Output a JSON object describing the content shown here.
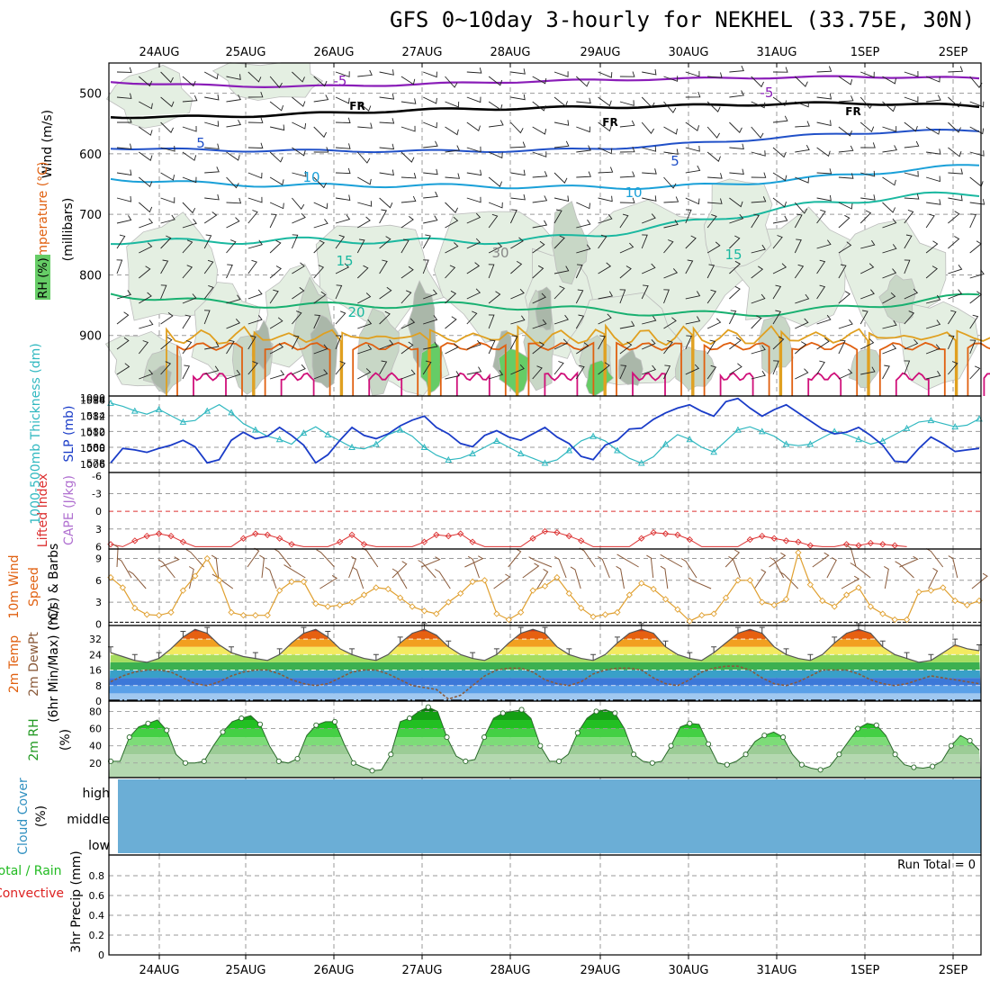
{
  "title": "GFS 0~10day 3-hourly for NEKHEL (33.75E, 30N)",
  "dates": [
    "24AUG",
    "25AUG",
    "26AUG",
    "27AUG",
    "28AUG",
    "29AUG",
    "30AUG",
    "31AUG",
    "1SEP",
    "2SEP"
  ],
  "colors": {
    "frame": "#000000",
    "grid": "#9a9a9a",
    "rh_fill_light": "#e4efe2",
    "rh_fill_mid": "#c8d7c6",
    "rh_fill_dark": "#aab7a9",
    "rh_fill_green": "#66cc66",
    "temp_purple": "#8a1db8",
    "temp_blue": "#2050c8",
    "temp_cyan": "#1aa0d8",
    "temp_teal": "#1ab8a0",
    "temp_green": "#18b070",
    "temp_orange": "#e0a020",
    "temp_darkorange": "#e06010",
    "temp_magenta": "#d0107a",
    "slp": "#1a3cc8",
    "thickness": "#30b8c0",
    "lifted": "#dc3030",
    "wind_speed": "#e0a030",
    "dewpoint": "#8a5a3a",
    "rh2m": "#229922",
    "cloud": "#6baed6"
  },
  "panels": {
    "upper": {
      "ylabel_wind": "Wind (m/s)",
      "ylabel_temp": "Temperature (°C)",
      "ylabel_rh": "RH (%)",
      "ylabel_units": "(millibars)",
      "ticks": [
        "500",
        "600",
        "700",
        "800",
        "900",
        "1000"
      ],
      "contour_labels": [
        "-5",
        "-5",
        "FR",
        "FR",
        "FR",
        "5",
        "5",
        "10",
        "10",
        "15",
        "15",
        "20",
        "30"
      ]
    },
    "slp": {
      "ylabel_thick": "1000-500mb Thickness (dm)",
      "ylabel_slp": "SLP (mb)",
      "left_ticks": [
        "586",
        "584",
        "582",
        "580",
        "578"
      ],
      "right_ticks": [
        "1014",
        "1012",
        "1010",
        "1008",
        "1006"
      ],
      "top_label": "1000"
    },
    "cape": {
      "ylabel_li": "Lifted Index",
      "ylabel_cape": "CAPE (J/kg)",
      "ticks": [
        "-6",
        "-3",
        "0",
        "3",
        "6"
      ]
    },
    "wind10": {
      "ylabel_1": "10m Wind",
      "ylabel_2": "Speed",
      "ylabel_3": "(m/s) & Barbs",
      "ticks": [
        "9",
        "6",
        "3",
        "0"
      ]
    },
    "temp2m": {
      "ylabel_1": "2m Temp",
      "ylabel_2": "2m DewPt",
      "ylabel_3": "(6hr Min/Max) (°C)",
      "ticks": [
        "32",
        "24",
        "16",
        "8",
        "0"
      ]
    },
    "rh2m": {
      "ylabel_1": "2m RH",
      "ylabel_2": "(%)",
      "ticks": [
        "80",
        "60",
        "40",
        "20"
      ]
    },
    "cloud": {
      "ylabel_1": "Cloud Cover",
      "ylabel_2": "(%)",
      "levels": [
        "high",
        "middle",
        "low"
      ]
    },
    "precip": {
      "ylabel_1": "Total / Rain",
      "ylabel_2": "Convective",
      "ylabel_3": "3hr Precip (mm)",
      "ticks": [
        "0.8",
        "0.6",
        "0.4",
        "0.2",
        "0"
      ],
      "run_total": "Run Total = 0"
    }
  },
  "chart_data": [
    {
      "type": "line",
      "name": "slp_thickness",
      "x_unit": "3-hourly steps from 23AUG 12Z",
      "series": [
        {
          "name": "SLP (mb)",
          "values": [
            1006.2,
            1008.0,
            1007.8,
            1007.5,
            1008.0,
            1008.4,
            1009.0,
            1008.2,
            1006.2,
            1006.6,
            1009.0,
            1010.0,
            1009.2,
            1009.5,
            1010.6,
            1009.6,
            1008.4,
            1006.2,
            1007.2,
            1009.0,
            1010.6,
            1009.6,
            1009.2,
            1009.8,
            1010.8,
            1011.5,
            1012.0,
            1010.6,
            1009.8,
            1008.6,
            1008.2,
            1009.6,
            1010.2,
            1009.4,
            1009.0,
            1009.8,
            1010.6,
            1009.4,
            1008.6,
            1007.0,
            1006.6,
            1008.4,
            1009.0,
            1010.4,
            1010.5,
            1011.6,
            1012.4,
            1013.0,
            1013.4,
            1012.6,
            1012.0,
            1013.8,
            1014.2,
            1013.0,
            1012.0,
            1012.8,
            1013.4,
            1012.4,
            1011.4,
            1010.4,
            1009.8,
            1010.0,
            1010.6,
            1009.6,
            1008.4,
            1006.4,
            1006.3,
            1008.0,
            1009.4,
            1008.6,
            1007.6,
            1007.8,
            1008.0
          ]
        },
        {
          "name": "1000-500mb Thickness (dm)",
          "values": [
            585.6,
            585.2,
            584.6,
            584.2,
            584.8,
            584.0,
            583.2,
            583.4,
            584.6,
            585.4,
            584.4,
            583.0,
            582.2,
            581.4,
            581.0,
            580.4,
            581.8,
            582.6,
            581.6,
            580.8,
            580.0,
            579.8,
            580.4,
            581.6,
            582.2,
            581.4,
            580.0,
            579.0,
            578.4,
            578.6,
            579.2,
            580.0,
            580.8,
            580.0,
            579.2,
            578.6,
            578.0,
            578.4,
            579.6,
            580.8,
            581.4,
            580.8,
            579.6,
            578.6,
            578.0,
            578.8,
            580.4,
            581.6,
            581.0,
            580.0,
            579.4,
            580.8,
            582.2,
            582.6,
            582.0,
            581.4,
            580.4,
            580.2,
            580.4,
            581.2,
            582.0,
            581.6,
            581.0,
            580.4,
            580.8,
            581.6,
            582.4,
            583.2,
            583.4,
            583.0,
            582.6,
            582.8,
            583.6
          ]
        }
      ]
    },
    {
      "type": "line",
      "name": "lifted_index",
      "x_unit": "3-hourly steps from 23AUG 12Z",
      "series": [
        {
          "name": "Lifted Index",
          "values": [
            5.6,
            6.0,
            5.0,
            4.2,
            3.8,
            4.2,
            5.2,
            6.0,
            6.0,
            6.0,
            6.0,
            4.6,
            3.8,
            4.0,
            4.6,
            5.6,
            6.0,
            6.0,
            6.0,
            5.2,
            4.0,
            5.6,
            6.0,
            6.0,
            6.0,
            6.0,
            5.2,
            4.0,
            4.2,
            3.8,
            5.2,
            6.0,
            6.0,
            6.0,
            6.0,
            4.6,
            3.4,
            3.6,
            4.2,
            5.0,
            6.0,
            6.0,
            6.0,
            6.0,
            4.6,
            3.6,
            3.8,
            4.0,
            4.8,
            6.0,
            6.0,
            6.0,
            6.0,
            4.8,
            4.2,
            4.6,
            5.0,
            5.2,
            5.8,
            6.0,
            6.0,
            5.6,
            5.8,
            5.4,
            5.6,
            5.8,
            6.0
          ]
        }
      ]
    },
    {
      "type": "line",
      "name": "wind_speed_10m",
      "x_unit": "3-hourly steps from 23AUG 12Z",
      "series": [
        {
          "name": "10m Wind Speed (m/s)",
          "values": [
            6.4,
            5.0,
            2.2,
            1.3,
            1.2,
            1.6,
            4.6,
            6.6,
            9.0,
            6.0,
            1.6,
            1.2,
            1.2,
            1.2,
            4.6,
            5.8,
            5.8,
            2.8,
            2.4,
            2.6,
            3.0,
            4.0,
            5.0,
            4.8,
            3.6,
            2.4,
            1.8,
            1.4,
            3.0,
            4.2,
            5.8,
            6.0,
            1.4,
            0.6,
            1.6,
            4.6,
            5.2,
            6.4,
            4.2,
            2.2,
            1.0,
            1.3,
            1.6,
            4.0,
            5.6,
            4.8,
            3.4,
            2.0,
            0.4,
            1.2,
            1.4,
            3.6,
            6.0,
            6.0,
            3.0,
            2.6,
            3.4,
            9.8,
            5.4,
            3.2,
            2.4,
            4.0,
            5.0,
            2.4,
            1.4,
            0.6,
            0.6,
            4.4,
            4.6,
            5.0,
            3.2,
            2.6,
            3.2
          ]
        }
      ]
    },
    {
      "type": "area",
      "name": "temp_dewpoint_2m",
      "x_unit": "3-hourly steps from 23AUG 12Z",
      "series": [
        {
          "name": "2m Temp (°C)",
          "values": [
            25,
            23,
            21,
            20,
            22,
            27,
            33,
            37,
            35,
            29,
            25,
            23,
            22,
            21,
            24,
            30,
            35,
            37,
            33,
            27,
            24,
            22,
            21,
            24,
            30,
            35,
            37,
            34,
            28,
            24,
            22,
            21,
            24,
            30,
            35,
            37,
            35,
            28,
            24,
            22,
            21,
            24,
            30,
            35,
            37,
            35,
            28,
            24,
            22,
            21,
            25,
            30,
            35,
            37,
            35,
            28,
            24,
            22,
            21,
            24,
            30,
            35,
            37,
            35,
            28,
            24,
            22,
            20,
            21,
            25,
            29,
            27,
            26
          ]
        },
        {
          "name": "2m DewPt (°C)",
          "values": [
            10,
            13,
            15,
            16,
            16,
            15,
            12,
            9,
            8,
            10,
            13,
            15,
            16,
            16,
            14,
            11,
            9,
            8,
            9,
            12,
            15,
            16,
            16,
            14,
            11,
            8,
            7,
            6,
            1,
            3,
            8,
            13,
            16,
            17,
            17,
            15,
            11,
            9,
            8,
            10,
            14,
            16,
            17,
            17,
            16,
            12,
            9,
            8,
            11,
            15,
            17,
            18,
            18,
            16,
            12,
            9,
            8,
            10,
            13,
            16,
            16,
            16,
            14,
            11,
            9,
            8,
            9,
            11,
            13,
            12,
            11,
            10,
            9
          ]
        }
      ]
    },
    {
      "type": "area",
      "name": "rh_2m",
      "x_unit": "3-hourly steps from 23AUG 12Z",
      "series": [
        {
          "name": "2m RH (%)",
          "values": [
            22,
            22,
            50,
            62,
            66,
            70,
            58,
            30,
            20,
            20,
            22,
            40,
            56,
            68,
            72,
            75,
            65,
            40,
            22,
            20,
            25,
            52,
            64,
            68,
            68,
            42,
            20,
            15,
            11,
            12,
            30,
            68,
            72,
            80,
            85,
            80,
            50,
            28,
            22,
            24,
            50,
            72,
            78,
            80,
            82,
            72,
            40,
            22,
            22,
            30,
            55,
            72,
            80,
            82,
            78,
            60,
            30,
            22,
            20,
            22,
            40,
            62,
            66,
            65,
            42,
            20,
            18,
            22,
            30,
            45,
            52,
            56,
            50,
            30,
            18,
            14,
            12,
            16,
            30,
            45,
            60,
            66,
            64,
            52,
            30,
            18,
            15,
            14,
            16,
            22,
            40,
            52,
            46,
            35
          ]
        }
      ]
    },
    {
      "type": "bar",
      "name": "precip_3hr",
      "ylim": [
        0,
        1.0
      ],
      "series": [
        {
          "name": "3hr Precip (mm)",
          "values": []
        }
      ]
    }
  ]
}
